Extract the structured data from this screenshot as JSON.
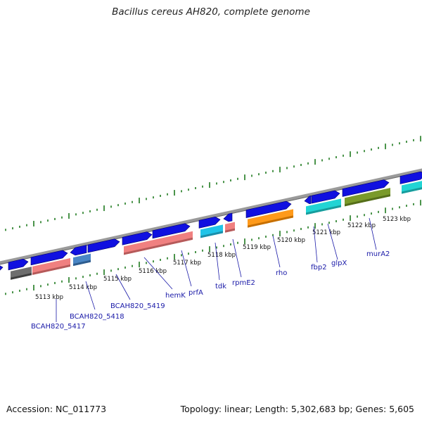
{
  "title": "Bacillus cereus AH820, complete genome",
  "footer": {
    "accession": "Accession: NC_011773",
    "topology": "Topology: linear; Length: 5,302,683 bp; Genes: 5,605"
  },
  "colors": {
    "backbone": "#8a8a8a",
    "tick": "#1e7a1e",
    "gene_arrow": "#1010e0",
    "label": "#1a1aa8"
  },
  "scale_labels": [
    "5113 kbp",
    "5114 kbp",
    "5115 kbp",
    "5116 kbp",
    "5117 kbp",
    "5118 kbp",
    "5119 kbp",
    "5120 kbp",
    "5121 kbp",
    "5122 kbp",
    "5123 kbp"
  ],
  "gene_labels": [
    "BCAH820_5417",
    "BCAH820_5418",
    "BCAH820_5419",
    "hemK",
    "prfA",
    "tdk",
    "rpmE2",
    "rho",
    "fbp2",
    "glpX",
    "murA2"
  ]
}
